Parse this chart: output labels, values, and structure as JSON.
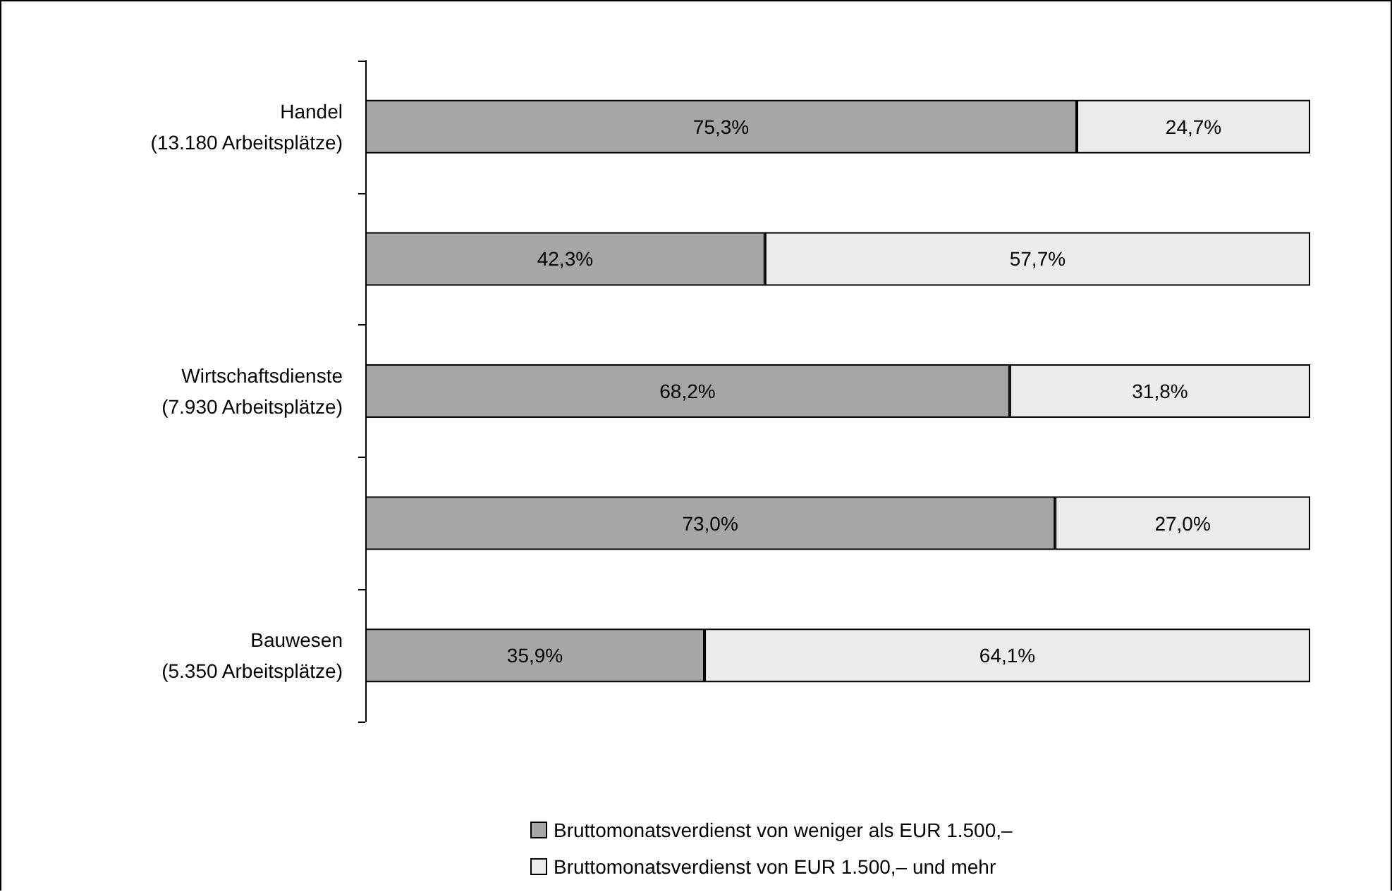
{
  "chart_data": {
    "type": "bar",
    "orientation": "horizontal",
    "stacked": true,
    "legend": "bottom",
    "xlim": [
      0,
      100
    ],
    "tick_labels": "y",
    "categories": [
      "Handel\n(13.180 Arbeitsplätze)",
      null,
      "Wirtschaftsdienste\n(7.930 Arbeitsplätze)",
      null,
      "Bauwesen\n(5.350 Arbeitsplätze)"
    ],
    "series": [
      {
        "name": "Bruttomonatsverdienst von weniger als EUR 1.500,–",
        "color": "#a6a6a6",
        "values": [
          75.3,
          42.3,
          68.2,
          73.0,
          35.9
        ],
        "value_labels": [
          "75,3%",
          "42,3%",
          "68,2%",
          "73,0%",
          "35,9%"
        ]
      },
      {
        "name": "Bruttomonatsverdienst von EUR 1.500,– und mehr",
        "color": "#ebebeb",
        "values": [
          24.7,
          57.7,
          31.8,
          27.0,
          64.1
        ],
        "value_labels": [
          "24,7%",
          "57,7%",
          "31,8%",
          "27,0%",
          "64,1%"
        ]
      }
    ]
  }
}
